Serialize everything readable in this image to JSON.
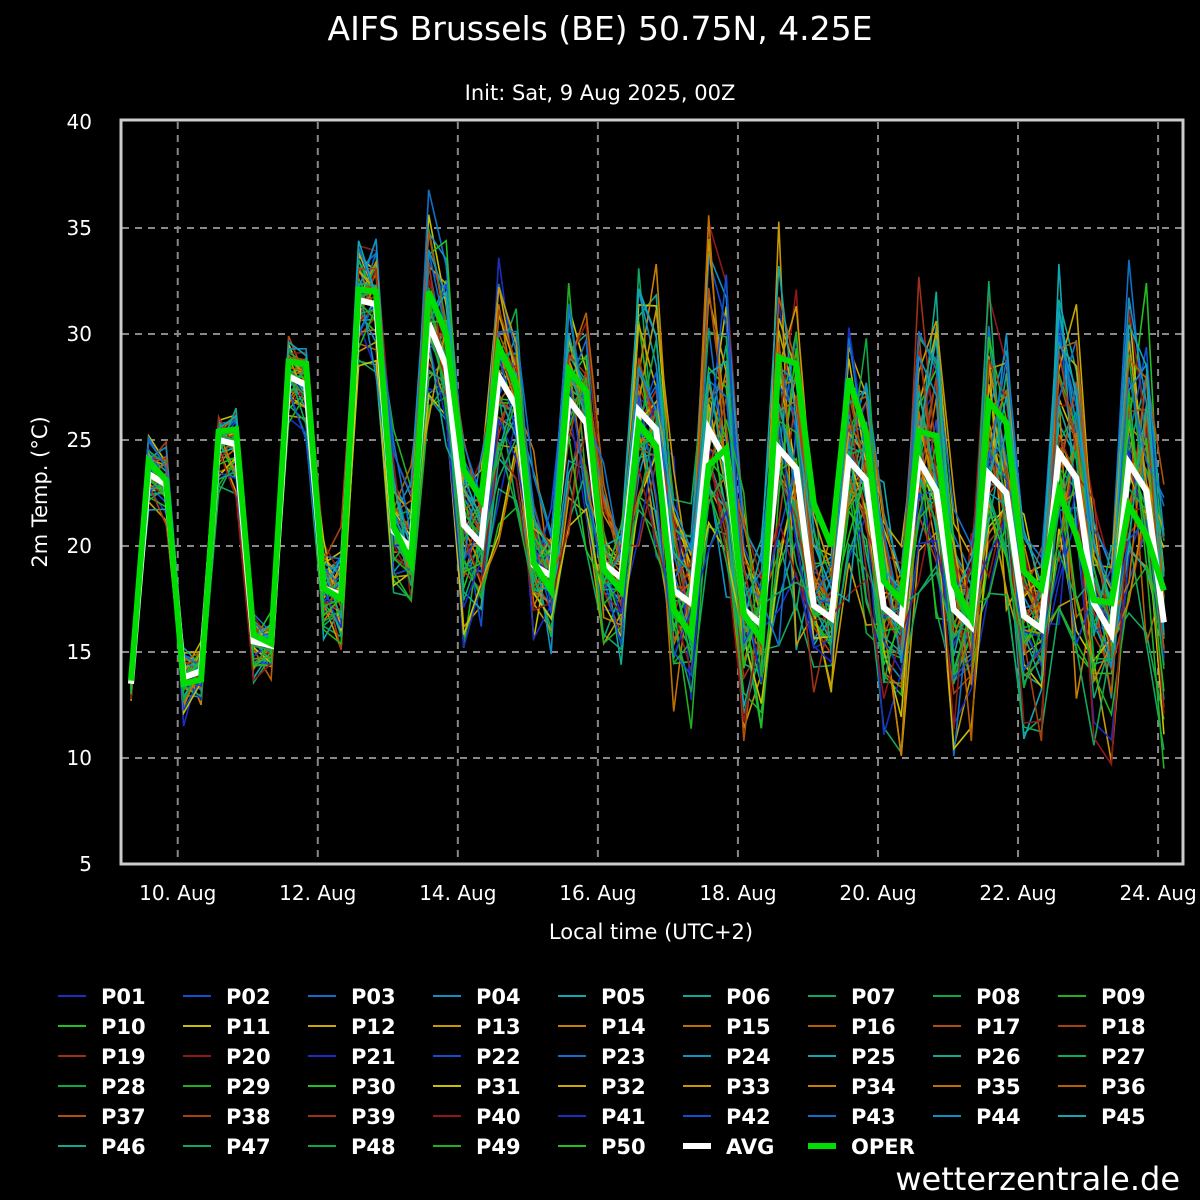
{
  "chart_data": {
    "type": "line",
    "title": "AIFS Brussels (BE) 50.75N, 4.25E",
    "subtitle": "Init: Sat, 9 Aug 2025, 00Z",
    "xlabel": "Local time (UTC+2)",
    "ylabel": "2m Temp. (°C)",
    "ylim": [
      5,
      40
    ],
    "yticks": [
      "5",
      "10",
      "15",
      "20",
      "25",
      "30",
      "35",
      "40"
    ],
    "x_start": "9 Aug 08:00 local",
    "x_start_hour": 8,
    "x_step_hours": 6,
    "xlim_hours": [
      4.9,
      368.2
    ],
    "xticks": [
      {
        "label": "10. Aug",
        "hour": 24
      },
      {
        "label": "12. Aug",
        "hour": 72
      },
      {
        "label": "14. Aug",
        "hour": 120
      },
      {
        "label": "16. Aug",
        "hour": 168
      },
      {
        "label": "18. Aug",
        "hour": 216
      },
      {
        "label": "20. Aug",
        "hour": 264
      },
      {
        "label": "22. Aug",
        "hour": 312
      },
      {
        "label": "24. Aug",
        "hour": 360
      }
    ],
    "grid": true,
    "legend_placement": "bottom",
    "series": [
      {
        "name": "AVG",
        "color": "#ffffff",
        "values": [
          13.5,
          23.4,
          22.9,
          13.8,
          14.1,
          25.0,
          24.8,
          15.5,
          15.3,
          28.0,
          27.6,
          18.0,
          17.7,
          31.6,
          31.4,
          20.7,
          19.9,
          30.5,
          28.5,
          21.0,
          20.1,
          28.0,
          26.6,
          19.1,
          18.6,
          26.9,
          25.8,
          19.15,
          18.5,
          26.4,
          25.5,
          17.9,
          17.3,
          25.5,
          24.0,
          17.0,
          16.3,
          24.6,
          23.65,
          17.2,
          16.6,
          24.05,
          23.1,
          17.1,
          16.4,
          24.05,
          22.6,
          17.0,
          16.2,
          23.4,
          22.5,
          16.7,
          16.1,
          24.4,
          23.2,
          17.3,
          15.85,
          23.9,
          22.6,
          16.4
        ]
      },
      {
        "name": "OPER",
        "color": "#00dd00",
        "values": [
          13.65,
          24.0,
          23.1,
          13.5,
          13.7,
          25.4,
          25.5,
          15.8,
          15.4,
          28.7,
          28.6,
          18.0,
          17.5,
          32.1,
          32.0,
          20.9,
          19.2,
          32.0,
          30.0,
          23.6,
          22.2,
          29.4,
          27.7,
          19.2,
          17.9,
          28.3,
          27.3,
          18.9,
          17.9,
          25.8,
          24.7,
          17.0,
          15.8,
          23.8,
          24.6,
          16.8,
          15.6,
          28.9,
          28.6,
          22.0,
          20.0,
          27.9,
          25.3,
          18.35,
          17.4,
          25.4,
          25.2,
          18.2,
          16.6,
          26.8,
          25.8,
          18.8,
          18.0,
          22.6,
          20.5,
          17.45,
          17.3,
          21.9,
          20.5,
          17.9
        ]
      }
    ],
    "ensemble_envelope": {
      "min": [
        12.7,
        21.7,
        21.0,
        11.5,
        12.5,
        22.5,
        22.3,
        13.3,
        13.7,
        25.8,
        25.0,
        15.6,
        15.1,
        28.5,
        28.0,
        17.8,
        17.4,
        26.0,
        24.7,
        15.2,
        16.2,
        20.2,
        21.8,
        15.6,
        14.9,
        20.6,
        19.8,
        15.4,
        14.4,
        20.0,
        19.5,
        12.2,
        11.2,
        19.8,
        17.6,
        10.8,
        11.4,
        15.3,
        15.1,
        13.1,
        13.1,
        17.4,
        15.9,
        11.1,
        10.1,
        17.8,
        16.6,
        10.1,
        10.8,
        17.6,
        17.0,
        10.9,
        10.8,
        16.3,
        12.8,
        10.6,
        9.7,
        14.1,
        15.4,
        9.5
      ],
      "max": [
        14.0,
        25.2,
        24.9,
        15.2,
        15.5,
        26.1,
        26.5,
        16.8,
        16.9,
        29.9,
        29.3,
        20.3,
        20.9,
        34.4,
        34.5,
        25.5,
        23.8,
        36.8,
        34.4,
        25.0,
        24.2,
        33.6,
        31.2,
        24.5,
        21.8,
        32.4,
        31.0,
        23.9,
        21.0,
        33.1,
        33.3,
        24.2,
        22.0,
        35.6,
        32.8,
        22.5,
        20.3,
        35.3,
        32.1,
        22.5,
        20.5,
        30.3,
        29.8,
        23.0,
        20.0,
        32.7,
        32.0,
        22.6,
        20.6,
        32.5,
        30.0,
        21.5,
        19.9,
        33.3,
        31.4,
        22.2,
        20.0,
        33.5,
        32.4,
        22.9
      ]
    },
    "member_palette": [
      "#1a2fc0",
      "#1050d0",
      "#1070c8",
      "#1090c0",
      "#10a8b0",
      "#10a890",
      "#10a860",
      "#10a840",
      "#20b020",
      "#20c020",
      "#c8c000",
      "#c8a800",
      "#c89800",
      "#c88000",
      "#c07000",
      "#b86000",
      "#b05010",
      "#a84010",
      "#a03018",
      "#901818"
    ]
  },
  "legend": {
    "members": [
      "P01",
      "P02",
      "P03",
      "P04",
      "P05",
      "P06",
      "P07",
      "P08",
      "P09",
      "P10",
      "P11",
      "P12",
      "P13",
      "P14",
      "P15",
      "P16",
      "P17",
      "P18",
      "P19",
      "P20",
      "P21",
      "P22",
      "P23",
      "P24",
      "P25",
      "P26",
      "P27",
      "P28",
      "P29",
      "P30",
      "P31",
      "P32",
      "P33",
      "P34",
      "P35",
      "P36",
      "P37",
      "P38",
      "P39",
      "P40",
      "P41",
      "P42",
      "P43",
      "P44",
      "P45",
      "P46",
      "P47",
      "P48",
      "P49",
      "P50"
    ],
    "avg_label": "AVG",
    "oper_label": "OPER"
  },
  "watermark": "wetterzentrale.de"
}
